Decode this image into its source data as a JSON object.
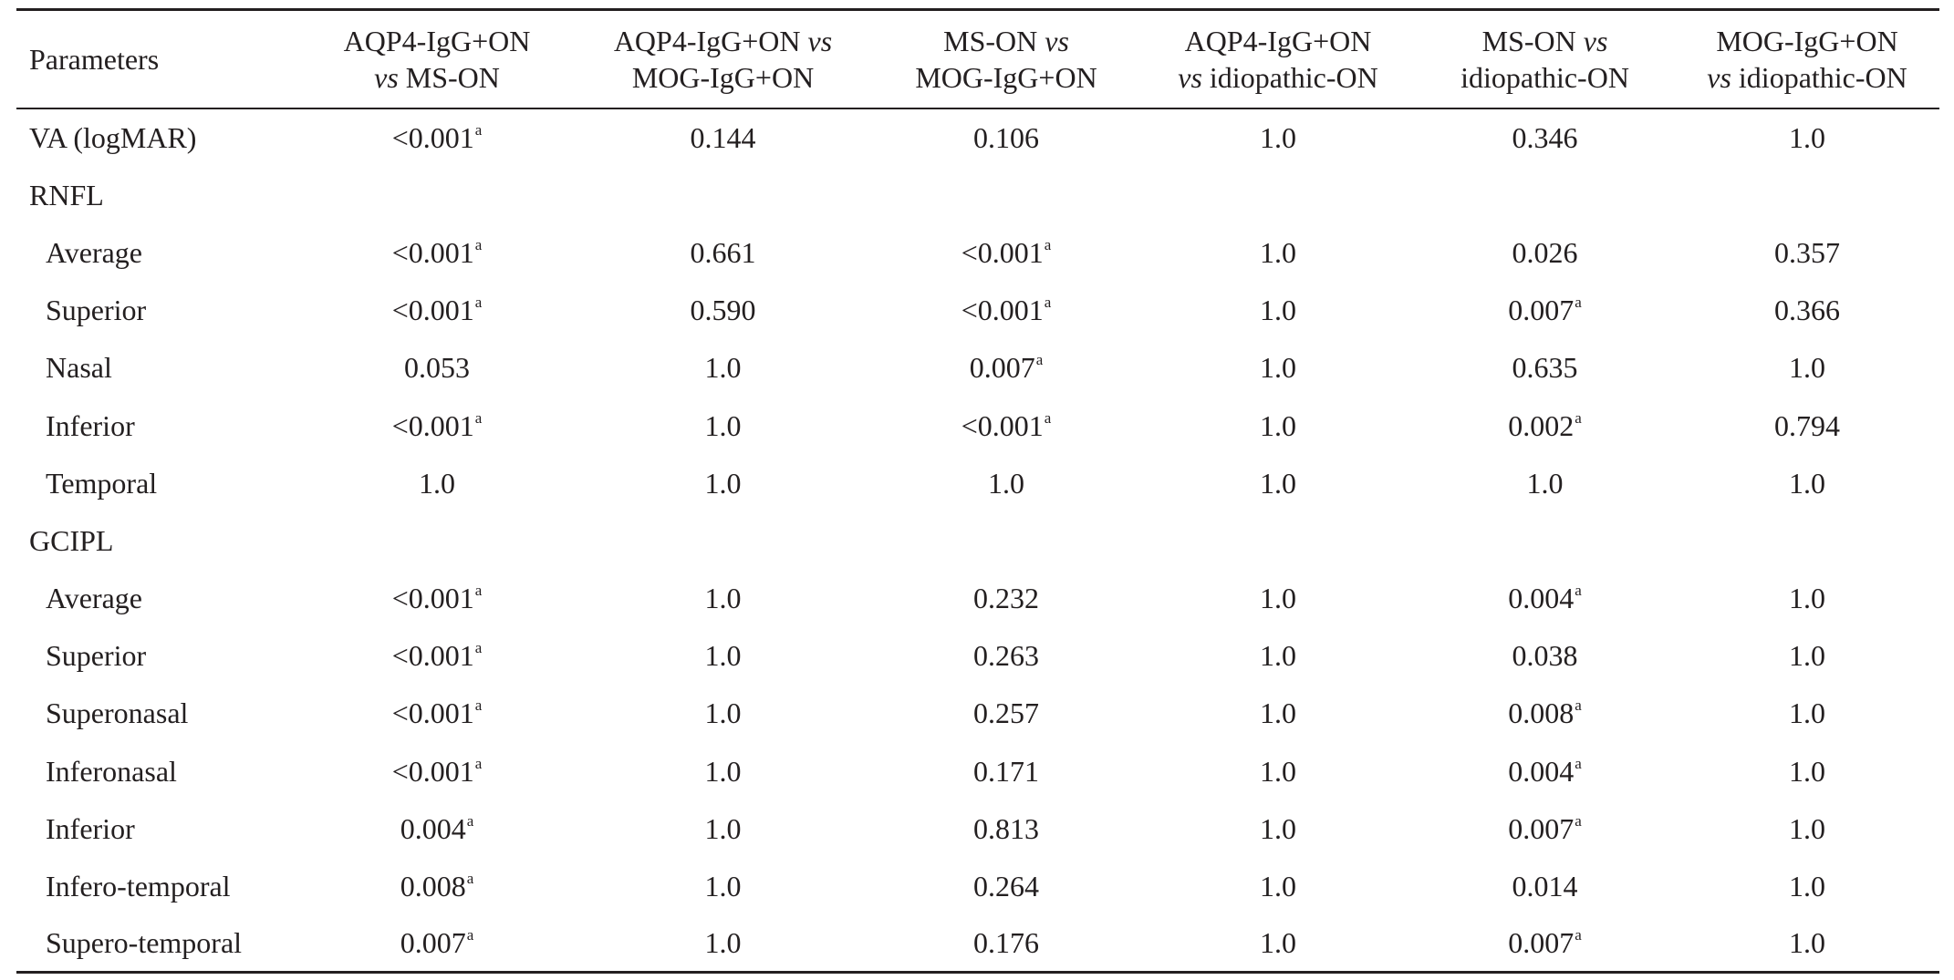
{
  "table": {
    "headers": [
      {
        "parts": [
          {
            "text": "Parameters",
            "italic": false
          }
        ]
      },
      {
        "line1": [
          {
            "text": "AQP4-IgG+ON",
            "italic": false
          }
        ],
        "line2": [
          {
            "text": "vs",
            "italic": true
          },
          {
            "text": " MS-ON",
            "italic": false
          }
        ]
      },
      {
        "line1": [
          {
            "text": "AQP4-IgG+ON ",
            "italic": false
          },
          {
            "text": "vs",
            "italic": true
          }
        ],
        "line2": [
          {
            "text": "MOG-IgG+ON",
            "italic": false
          }
        ]
      },
      {
        "line1": [
          {
            "text": "MS-ON ",
            "italic": false
          },
          {
            "text": "vs",
            "italic": true
          }
        ],
        "line2": [
          {
            "text": "MOG-IgG+ON",
            "italic": false
          }
        ]
      },
      {
        "line1": [
          {
            "text": "AQP4-IgG+ON",
            "italic": false
          }
        ],
        "line2": [
          {
            "text": "vs",
            "italic": true
          },
          {
            "text": " idiopathic-ON",
            "italic": false
          }
        ]
      },
      {
        "line1": [
          {
            "text": "MS-ON ",
            "italic": false
          },
          {
            "text": "vs",
            "italic": true
          }
        ],
        "line2": [
          {
            "text": "idiopathic-ON",
            "italic": false
          }
        ]
      },
      {
        "line1": [
          {
            "text": "MOG-IgG+ON",
            "italic": false
          }
        ],
        "line2": [
          {
            "text": "vs",
            "italic": true
          },
          {
            "text": " idiopathic-ON",
            "italic": false
          }
        ]
      }
    ],
    "rows": [
      {
        "param": "VA (logMAR)",
        "indent": false,
        "cells": [
          {
            "v": "<0.001",
            "sup": "a"
          },
          {
            "v": "0.144"
          },
          {
            "v": "0.106"
          },
          {
            "v": "1.0"
          },
          {
            "v": "0.346"
          },
          {
            "v": "1.0"
          }
        ]
      },
      {
        "param": "RNFL",
        "indent": false,
        "section": true,
        "cells": []
      },
      {
        "param": "Average",
        "indent": true,
        "cells": [
          {
            "v": "<0.001",
            "sup": "a"
          },
          {
            "v": "0.661"
          },
          {
            "v": "<0.001",
            "sup": "a"
          },
          {
            "v": "1.0"
          },
          {
            "v": "0.026"
          },
          {
            "v": "0.357"
          }
        ]
      },
      {
        "param": "Superior",
        "indent": true,
        "cells": [
          {
            "v": "<0.001",
            "sup": "a"
          },
          {
            "v": "0.590"
          },
          {
            "v": "<0.001",
            "sup": "a"
          },
          {
            "v": "1.0"
          },
          {
            "v": "0.007",
            "sup": "a"
          },
          {
            "v": "0.366"
          }
        ]
      },
      {
        "param": "Nasal",
        "indent": true,
        "cells": [
          {
            "v": "0.053"
          },
          {
            "v": "1.0"
          },
          {
            "v": "0.007",
            "sup": "a"
          },
          {
            "v": "1.0"
          },
          {
            "v": "0.635"
          },
          {
            "v": "1.0"
          }
        ]
      },
      {
        "param": "Inferior",
        "indent": true,
        "cells": [
          {
            "v": "<0.001",
            "sup": "a"
          },
          {
            "v": "1.0"
          },
          {
            "v": "<0.001",
            "sup": "a"
          },
          {
            "v": "1.0"
          },
          {
            "v": "0.002",
            "sup": "a"
          },
          {
            "v": "0.794"
          }
        ]
      },
      {
        "param": "Temporal",
        "indent": true,
        "cells": [
          {
            "v": "1.0"
          },
          {
            "v": "1.0"
          },
          {
            "v": "1.0"
          },
          {
            "v": "1.0"
          },
          {
            "v": "1.0"
          },
          {
            "v": "1.0"
          }
        ]
      },
      {
        "param": "GCIPL",
        "indent": false,
        "section": true,
        "cells": []
      },
      {
        "param": "Average",
        "indent": true,
        "cells": [
          {
            "v": "<0.001",
            "sup": "a"
          },
          {
            "v": "1.0"
          },
          {
            "v": "0.232"
          },
          {
            "v": "1.0"
          },
          {
            "v": "0.004",
            "sup": "a"
          },
          {
            "v": "1.0"
          }
        ]
      },
      {
        "param": "Superior",
        "indent": true,
        "cells": [
          {
            "v": "<0.001",
            "sup": "a"
          },
          {
            "v": "1.0"
          },
          {
            "v": "0.263"
          },
          {
            "v": "1.0"
          },
          {
            "v": "0.038"
          },
          {
            "v": "1.0"
          }
        ]
      },
      {
        "param": "Superonasal",
        "indent": true,
        "cells": [
          {
            "v": "<0.001",
            "sup": "a"
          },
          {
            "v": "1.0"
          },
          {
            "v": "0.257"
          },
          {
            "v": "1.0"
          },
          {
            "v": "0.008",
            "sup": "a"
          },
          {
            "v": "1.0"
          }
        ]
      },
      {
        "param": "Inferonasal",
        "indent": true,
        "cells": [
          {
            "v": "<0.001",
            "sup": "a"
          },
          {
            "v": "1.0"
          },
          {
            "v": "0.171"
          },
          {
            "v": "1.0"
          },
          {
            "v": "0.004",
            "sup": "a"
          },
          {
            "v": "1.0"
          }
        ]
      },
      {
        "param": "Inferior",
        "indent": true,
        "cells": [
          {
            "v": "0.004",
            "sup": "a"
          },
          {
            "v": "1.0"
          },
          {
            "v": "0.813"
          },
          {
            "v": "1.0"
          },
          {
            "v": "0.007",
            "sup": "a"
          },
          {
            "v": "1.0"
          }
        ]
      },
      {
        "param": "Infero-temporal",
        "indent": true,
        "cells": [
          {
            "v": "0.008",
            "sup": "a"
          },
          {
            "v": "1.0"
          },
          {
            "v": "0.264"
          },
          {
            "v": "1.0"
          },
          {
            "v": "0.014"
          },
          {
            "v": "1.0"
          }
        ]
      },
      {
        "param": "Supero-temporal",
        "indent": true,
        "cells": [
          {
            "v": "0.007",
            "sup": "a"
          },
          {
            "v": "1.0"
          },
          {
            "v": "0.176"
          },
          {
            "v": "1.0"
          },
          {
            "v": "0.007",
            "sup": "a"
          },
          {
            "v": "1.0"
          }
        ]
      }
    ]
  }
}
